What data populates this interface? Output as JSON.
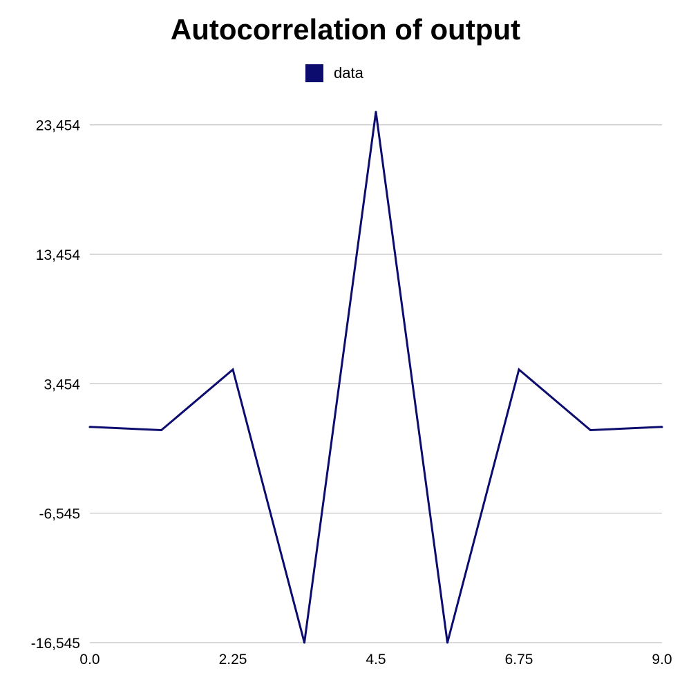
{
  "chart_data": {
    "type": "line",
    "title": "Autocorrelation of output",
    "xlabel": "",
    "ylabel": "",
    "xlim": [
      0,
      9
    ],
    "ylim": [
      -16545,
      24454
    ],
    "x_ticks": [
      0,
      2.25,
      4.5,
      6.75,
      9
    ],
    "x_tick_labels": [
      "0.0",
      "2.25",
      "4.5",
      "6.75",
      "9.0"
    ],
    "y_ticks": [
      -16545,
      -6545,
      3454,
      13454,
      23454
    ],
    "y_tick_labels": [
      "-16,545",
      "-6,545",
      "3,454",
      "13,454",
      "23,454"
    ],
    "grid": true,
    "legend_position": "top-center",
    "series": [
      {
        "name": "data",
        "color": "#0c0c6e",
        "x": [
          0,
          1.125,
          2.25,
          3.375,
          4.5,
          5.625,
          6.75,
          7.875,
          9
        ],
        "y": [
          0.12,
          -0.13,
          4.55,
          -16.545,
          24.454,
          -16.545,
          4.55,
          -0.13,
          0.12
        ]
      }
    ]
  },
  "colors": {
    "series": "#0c0c6e",
    "grid": "#b3b3b3"
  }
}
